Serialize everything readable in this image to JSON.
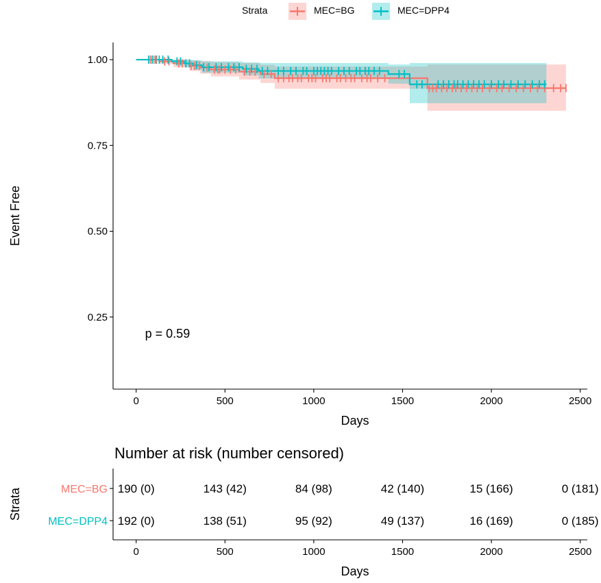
{
  "legend": {
    "title": "Strata",
    "items": [
      {
        "label": "MEC=BG",
        "color": "#F8766D",
        "band_color": "#F8766D"
      },
      {
        "label": "MEC=DPP4",
        "color": "#00BFC4",
        "band_color": "#00BFC4"
      }
    ]
  },
  "chart_data": [
    {
      "type": "line",
      "subtype": "kaplan-meier",
      "xlabel": "Days",
      "ylabel": "Event Free",
      "xlim": [
        -130,
        2540
      ],
      "ylim": [
        0.04,
        1.05
      ],
      "xticks": [
        0,
        500,
        1000,
        1500,
        2000,
        2500
      ],
      "yticks": [
        0.25,
        0.5,
        0.75,
        1.0
      ],
      "ytick_labels": [
        "0.25",
        "0.50",
        "0.75",
        "1.00"
      ],
      "grid": false,
      "legend_position": "top",
      "annotation": "p = 0.59",
      "annotation_at": {
        "x": 50,
        "y": 0.19
      },
      "series": [
        {
          "name": "MEC=BG",
          "color": "#F8766D",
          "steps": [
            [
              0,
              1.0
            ],
            [
              130,
              0.995
            ],
            [
              210,
              0.989
            ],
            [
              300,
              0.982
            ],
            [
              360,
              0.977
            ],
            [
              420,
              0.971
            ],
            [
              580,
              0.965
            ],
            [
              700,
              0.958
            ],
            [
              780,
              0.946
            ],
            [
              1640,
              0.917
            ],
            [
              2420,
              0.917
            ]
          ],
          "lower": [
            [
              0,
              1.0
            ],
            [
              130,
              0.988
            ],
            [
              210,
              0.978
            ],
            [
              300,
              0.967
            ],
            [
              360,
              0.959
            ],
            [
              420,
              0.951
            ],
            [
              580,
              0.942
            ],
            [
              700,
              0.932
            ],
            [
              780,
              0.915
            ],
            [
              1640,
              0.851
            ],
            [
              2420,
              0.851
            ]
          ],
          "upper": [
            [
              0,
              1.0
            ],
            [
              130,
              1.0
            ],
            [
              210,
              1.0
            ],
            [
              300,
              0.998
            ],
            [
              360,
              0.996
            ],
            [
              420,
              0.993
            ],
            [
              580,
              0.99
            ],
            [
              700,
              0.985
            ],
            [
              780,
              0.98
            ],
            [
              1640,
              0.986
            ],
            [
              2420,
              0.986
            ]
          ],
          "censor_x": [
            80,
            100,
            115,
            160,
            185,
            240,
            260,
            310,
            330,
            355,
            400,
            440,
            460,
            470,
            500,
            530,
            560,
            610,
            640,
            670,
            720,
            760,
            800,
            830,
            860,
            880,
            910,
            930,
            970,
            990,
            1010,
            1050,
            1070,
            1090,
            1130,
            1150,
            1180,
            1210,
            1230,
            1270,
            1300,
            1320,
            1360,
            1400,
            1650,
            1670,
            1690,
            1720,
            1750,
            1780,
            1800,
            1830,
            1860,
            1890,
            1920,
            1950,
            1990,
            2030,
            2060,
            2100,
            2140,
            2180,
            2220,
            2260,
            2300,
            2350,
            2390,
            2420
          ]
        },
        {
          "name": "MEC=DPP4",
          "color": "#00BFC4",
          "steps": [
            [
              0,
              1.0
            ],
            [
              200,
              0.995
            ],
            [
              270,
              0.989
            ],
            [
              320,
              0.984
            ],
            [
              370,
              0.978
            ],
            [
              600,
              0.973
            ],
            [
              690,
              0.967
            ],
            [
              1420,
              0.958
            ],
            [
              1540,
              0.928
            ],
            [
              2310,
              0.928
            ]
          ],
          "lower": [
            [
              0,
              1.0
            ],
            [
              200,
              0.988
            ],
            [
              270,
              0.978
            ],
            [
              320,
              0.97
            ],
            [
              370,
              0.962
            ],
            [
              600,
              0.954
            ],
            [
              690,
              0.945
            ],
            [
              1420,
              0.93
            ],
            [
              1540,
              0.873
            ],
            [
              2310,
              0.873
            ]
          ],
          "upper": [
            [
              0,
              1.0
            ],
            [
              200,
              1.0
            ],
            [
              270,
              1.0
            ],
            [
              320,
              0.998
            ],
            [
              370,
              0.995
            ],
            [
              600,
              0.992
            ],
            [
              690,
              0.99
            ],
            [
              1420,
              0.986
            ],
            [
              1540,
              0.99
            ],
            [
              2310,
              0.99
            ]
          ],
          "censor_x": [
            70,
            90,
            110,
            130,
            150,
            180,
            230,
            250,
            280,
            300,
            340,
            380,
            410,
            450,
            480,
            520,
            550,
            580,
            620,
            650,
            680,
            710,
            740,
            800,
            830,
            870,
            900,
            940,
            960,
            1000,
            1020,
            1040,
            1060,
            1080,
            1100,
            1140,
            1170,
            1200,
            1240,
            1260,
            1290,
            1310,
            1340,
            1370,
            1480,
            1510,
            1580,
            1610,
            1700,
            1730,
            1760,
            1790,
            1810,
            1840,
            1870,
            1900,
            1930,
            1960,
            2000,
            2040,
            2070,
            2110,
            2150,
            2190,
            2230,
            2270,
            2300
          ]
        }
      ]
    },
    {
      "type": "table",
      "title": "Number at risk (number censored)",
      "xlabel": "Days",
      "ylabel": "Strata",
      "xticks": [
        0,
        500,
        1000,
        1500,
        2000,
        2500
      ],
      "rows": [
        {
          "name": "MEC=BG",
          "color": "#F8766D",
          "cells": [
            "190 (0)",
            "143 (42)",
            "84 (98)",
            "42 (140)",
            "15 (166)",
            "0 (181)"
          ]
        },
        {
          "name": "MEC=DPP4",
          "color": "#00BFC4",
          "cells": [
            "192 (0)",
            "138 (51)",
            "95 (92)",
            "49 (137)",
            "16 (169)",
            "0 (185)"
          ]
        }
      ]
    }
  ]
}
